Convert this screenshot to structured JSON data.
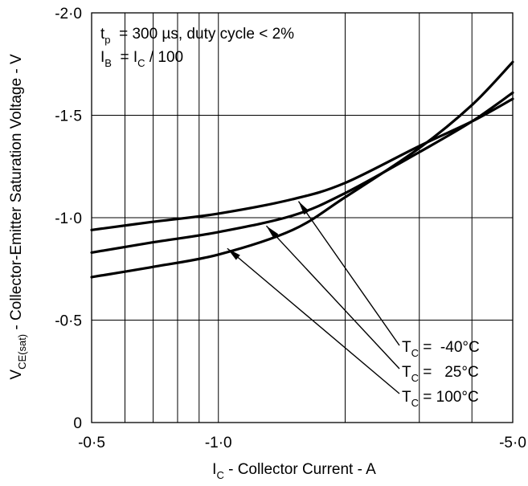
{
  "chart_data": {
    "type": "line",
    "x_scale": "log",
    "y_inverted": true,
    "grid": true,
    "xlim": [
      -0.5,
      -5.0
    ],
    "ylim": [
      0,
      -2.0
    ],
    "xlabel": {
      "main": "I",
      "sub": "C",
      "rest": " - Collector Current - A"
    },
    "ylabel": {
      "main": "V",
      "sub": "CE(sat)",
      "rest": " - Collector-Emitter Saturation Voltage - V"
    },
    "x_ticks": [
      {
        "value": -0.5,
        "label": "-0·5"
      },
      {
        "value": -1.0,
        "label": "-1·0"
      },
      {
        "value": -5.0,
        "label": "-5·0"
      }
    ],
    "x_minor_ticks": [
      -0.6,
      -0.7,
      -0.8,
      -0.9,
      -2.0,
      -3.0,
      -4.0
    ],
    "y_ticks": [
      {
        "value": 0,
        "label": "0"
      },
      {
        "value": -0.5,
        "label": "-0·5"
      },
      {
        "value": -1.0,
        "label": "-1·0"
      },
      {
        "value": -1.5,
        "label": "-1·5"
      },
      {
        "value": -2.0,
        "label": "-2·0"
      }
    ],
    "conditions": {
      "line1": {
        "main": "t",
        "sub": "p",
        "rest": "  = 300 µs, duty cycle < 2%"
      },
      "line2": {
        "main": "I",
        "sub": "B",
        "mid": "  = I",
        "sub2": "C",
        "rest": " / 100"
      }
    },
    "series": [
      {
        "name": "T_C = -40°C",
        "legend": {
          "main": "T",
          "sub": "C",
          "rest": " =  -40°C"
        },
        "arrow_target": [
          -1.55,
          -1.08
        ],
        "points": [
          [
            -0.5,
            -0.94
          ],
          [
            -0.7,
            -0.98
          ],
          [
            -1.0,
            -1.02
          ],
          [
            -1.5,
            -1.09
          ],
          [
            -2.0,
            -1.17
          ],
          [
            -3.0,
            -1.35
          ],
          [
            -4.0,
            -1.47
          ],
          [
            -5.0,
            -1.58
          ]
        ]
      },
      {
        "name": "T_C = 25°C",
        "legend": {
          "main": "T",
          "sub": "C",
          "rest": " =   25°C"
        },
        "arrow_target": [
          -1.3,
          -0.96
        ],
        "points": [
          [
            -0.5,
            -0.83
          ],
          [
            -0.7,
            -0.88
          ],
          [
            -1.0,
            -0.93
          ],
          [
            -1.5,
            -1.01
          ],
          [
            -2.0,
            -1.12
          ],
          [
            -3.0,
            -1.32
          ],
          [
            -4.0,
            -1.47
          ],
          [
            -5.0,
            -1.61
          ]
        ]
      },
      {
        "name": "T_C = 100°C",
        "legend": {
          "main": "T",
          "sub": "C",
          "rest": " = 100°C"
        },
        "arrow_target": [
          -1.05,
          -0.85
        ],
        "points": [
          [
            -0.5,
            -0.71
          ],
          [
            -0.7,
            -0.76
          ],
          [
            -1.0,
            -0.82
          ],
          [
            -1.5,
            -0.94
          ],
          [
            -2.0,
            -1.1
          ],
          [
            -3.0,
            -1.34
          ],
          [
            -4.0,
            -1.55
          ],
          [
            -5.0,
            -1.76
          ]
        ]
      }
    ]
  }
}
